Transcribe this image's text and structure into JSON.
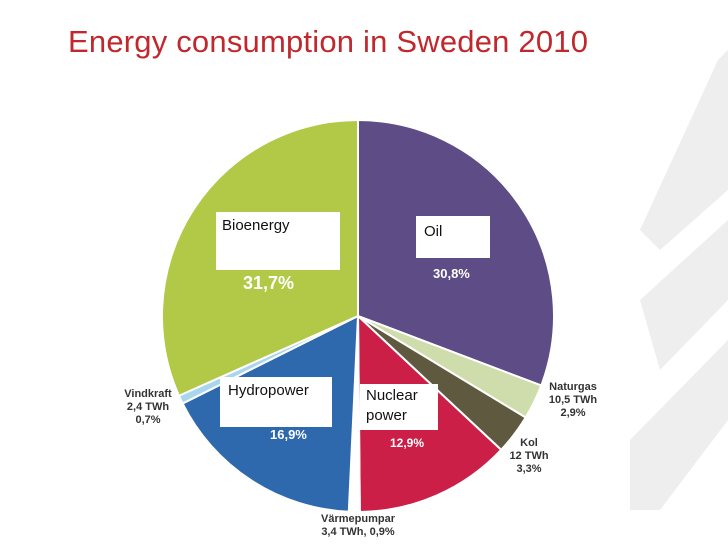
{
  "title": "Energy consumption in Sweden 2010",
  "colors": {
    "title": "#c0282d",
    "bioenergy": "#b2c847",
    "oil": "#5d4c86",
    "naturgas": "#cfdcac",
    "kol": "#5f5a3f",
    "nuclear": "#cc1f48",
    "varmepumpar": "#ffffff",
    "hydropower": "#2e69ae",
    "vindkraft": "#a9d5ef"
  },
  "chart_data": {
    "type": "pie",
    "start_angle_deg": 0,
    "slices": [
      {
        "key": "oil",
        "label": "Oil",
        "value_label": "30,8%",
        "value": 30.8,
        "color": "#5d4c86"
      },
      {
        "key": "naturgas",
        "label": "Naturgas",
        "sub": "10,5 TWh",
        "value_label": "2,9%",
        "value": 2.9,
        "color": "#cfdcac"
      },
      {
        "key": "kol",
        "label": "Kol",
        "sub": "12 TWh",
        "value_label": "3,3%",
        "value": 3.3,
        "color": "#5f5a3f"
      },
      {
        "key": "nuclear",
        "label": "Nuclear power",
        "value_label": "12,9%",
        "value": 12.9,
        "color": "#cc1f48"
      },
      {
        "key": "varmepumpar",
        "label": "Värmepumpar",
        "sub": "3,4 TWh, 0,9%",
        "value": 0.9,
        "color": "#ffffff"
      },
      {
        "key": "hydropower",
        "label": "Hydropower",
        "value_label": "16,9%",
        "value": 16.9,
        "color": "#2e69ae"
      },
      {
        "key": "vindkraft",
        "label": "Vindkraft",
        "sub": "2,4 TWh",
        "value_label": "0,7%",
        "value": 0.7,
        "color": "#a9d5ef"
      },
      {
        "key": "bioenergy",
        "label": "Bioenergy",
        "value_label": "31,7%",
        "value": 31.7,
        "color": "#b2c847"
      }
    ]
  },
  "labels": {
    "bioenergy": "Bioenergy",
    "oil": "Oil",
    "hydropower": "Hydropower",
    "nuclear_1": "Nuclear",
    "nuclear_2": "power",
    "bio_pct": "31,7%",
    "oil_pct": "30,8%",
    "hydro_pct": "16,9%",
    "nuclear_pct": "12,9%",
    "naturgas_1": "Naturgas",
    "naturgas_2": "10,5 TWh",
    "naturgas_3": "2,9%",
    "kol_1": "Kol",
    "kol_2": "12 TWh",
    "kol_3": "3,3%",
    "vind_1": "Vindkraft",
    "vind_2": "2,4 TWh",
    "vind_3": "0,7%",
    "varme_1": "Värmepumpar",
    "varme_2": "3,4 TWh, 0,9%"
  }
}
